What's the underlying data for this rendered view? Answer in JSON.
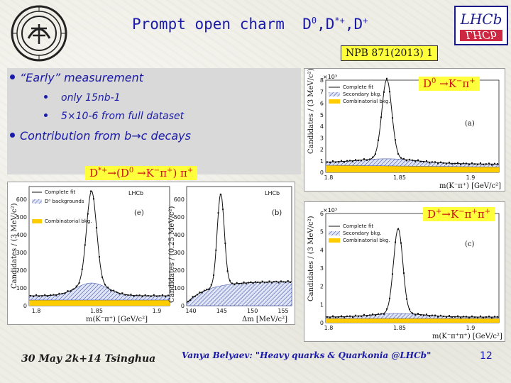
{
  "slide": {
    "title_main": "Prompt open charm",
    "title_particles": "D",
    "title_sup1": "0",
    "title_sep1": ",D",
    "title_sup2": "*+",
    "title_sep2": ",D",
    "title_sup3": "+",
    "reference": "NPB 871(2013) 1",
    "logo_right_text": "LHCb"
  },
  "bullets": {
    "b1": "“Early” measurement",
    "b2": "only 15nb-1",
    "b3": "5×10-6 from full dataset",
    "b4": "Contribution from b→c decays"
  },
  "tags": {
    "d0": "D0 →K−π+",
    "dstar": "D*+→(D0 →K−π+) π+",
    "dplus": "D+→K−π+π+"
  },
  "plot_d0": {
    "x_ticks": [
      "1.8",
      "1.85",
      "1.9"
    ],
    "y_ticks": [
      "0",
      "1",
      "2",
      "3",
      "4",
      "5",
      "6",
      "7",
      "8"
    ],
    "y_mult": "×10³",
    "ylabel": "Candidates / (3 MeV/c²)",
    "xlabel": "m(K⁻π⁺) [GeV/c²]",
    "legend": [
      "Complete fit",
      "Secondary bkg.",
      "Combinatorial bkg."
    ],
    "panel": "(a)"
  },
  "plot_dplus": {
    "x_ticks": [
      "1.8",
      "1.85",
      "1.9"
    ],
    "y_ticks": [
      "0",
      "1",
      "2",
      "3",
      "4",
      "5",
      "6"
    ],
    "y_mult": "×10³",
    "ylabel": "Candidates / (3 MeV/c²)",
    "xlabel": "m(K⁻π⁺π⁺) [GeV/c²]",
    "legend": [
      "Complete fit",
      "Secondary bkg.",
      "Combinatorial bkg."
    ],
    "panel": "(c)"
  },
  "plot_dstar_m": {
    "x_ticks": [
      "1.8",
      "1.85",
      "1.9"
    ],
    "y_ticks": [
      "0",
      "100",
      "200",
      "300",
      "400",
      "500",
      "600"
    ],
    "ylabel": "Candidates / (3 MeV/c²)",
    "xlabel": "m(K⁻π⁺) [GeV/c²]",
    "legend": [
      "Complete fit",
      "D⁰ backgrounds",
      "Combinatorial bkg."
    ],
    "panel": "(e)",
    "brand": "LHCb"
  },
  "plot_dstar_dm": {
    "x_ticks": [
      "140",
      "145",
      "150",
      "155"
    ],
    "y_ticks": [
      "0",
      "100",
      "200",
      "300",
      "400",
      "500",
      "600"
    ],
    "ylabel": "Candidates / (0.25 MeV/c²)",
    "xlabel": "Δm [MeV/c²]",
    "panel": "(b)",
    "brand": "LHCb"
  },
  "footer": {
    "date": "30 May 2k+14 Tsinghua",
    "talk": "Vanya Belyaev: \"Heavy quarks & Quarkonia @LHCb\"",
    "page": "12"
  }
}
